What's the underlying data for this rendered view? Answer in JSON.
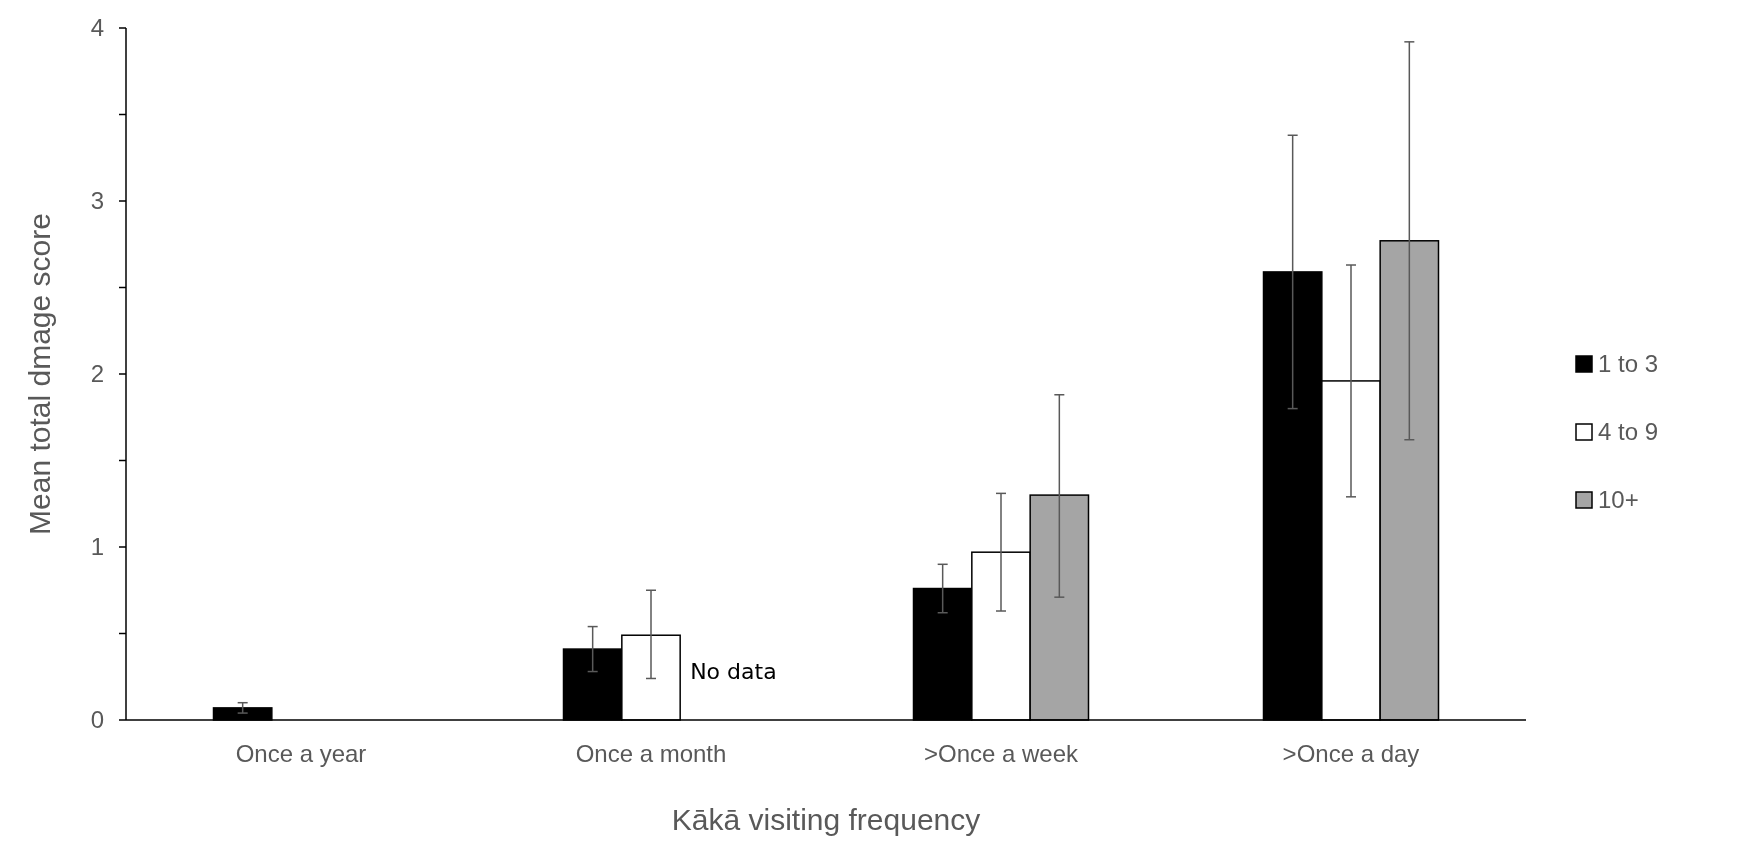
{
  "chart_data": {
    "type": "bar",
    "xlabel": "Kākā visiting frequency",
    "ylabel": "Mean total dmage score",
    "categories": [
      "Once a year",
      "Once a month",
      ">Once a week",
      ">Once a day"
    ],
    "series": [
      {
        "name": "1 to 3",
        "color": "#000000",
        "values": [
          0.07,
          0.41,
          0.76,
          2.59
        ],
        "errors": [
          [
            0.04,
            0.1
          ],
          [
            0.28,
            0.54
          ],
          [
            0.62,
            0.9
          ],
          [
            1.8,
            3.38
          ]
        ]
      },
      {
        "name": "4 to 9",
        "color": "#ffffff",
        "values": [
          0,
          0.49,
          0.97,
          1.96
        ],
        "errors": [
          null,
          [
            0.24,
            0.75
          ],
          [
            0.63,
            1.31
          ],
          [
            1.29,
            2.63
          ]
        ]
      },
      {
        "name": "10+",
        "color": "#a5a5a5",
        "values": [
          0,
          null,
          1.3,
          2.77
        ],
        "errors": [
          null,
          null,
          [
            0.71,
            1.88
          ],
          [
            1.62,
            3.92
          ]
        ]
      }
    ],
    "ylim": [
      0,
      4
    ],
    "yticks": [
      0,
      {
        "value": 0.5,
        "label": null
      },
      1,
      {
        "value": 1.5,
        "label": null
      },
      2,
      {
        "value": 2.5,
        "label": null
      },
      3,
      {
        "value": 3.5,
        "label": null
      },
      4
    ],
    "legend": "right",
    "annotations": [
      {
        "text": "No data",
        "x": "Once a month",
        "y": 0.28
      }
    ]
  }
}
